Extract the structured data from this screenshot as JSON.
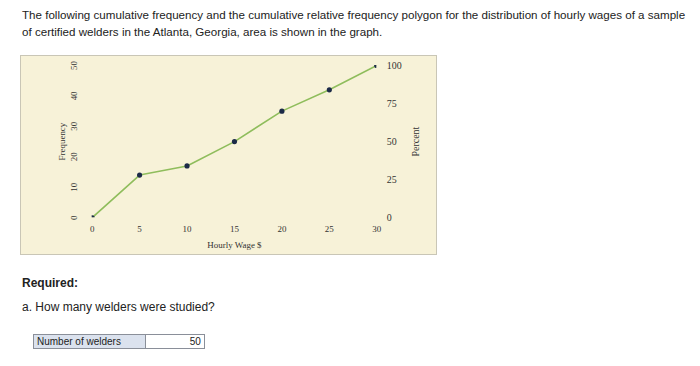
{
  "problem_text": "The following cumulative frequency and the cumulative relative frequency polygon for the distribution of hourly wages of a sample of certified welders in the Atlanta, Georgia, area is shown in the graph.",
  "chart_data": {
    "type": "line",
    "x_label": "Hourly Wage $",
    "y_label": "Frequency",
    "y2_label": "Percent",
    "x": [
      0,
      5,
      10,
      15,
      20,
      25,
      30
    ],
    "values": [
      0,
      14,
      17,
      25,
      35,
      42,
      50
    ],
    "color": "#8fbd5c",
    "marker": "circle",
    "xlim": [
      0,
      30
    ],
    "xticks": [
      0,
      5,
      10,
      15,
      20,
      25,
      30
    ],
    "ylim": [
      0,
      50
    ],
    "yticks": [
      0,
      10,
      20,
      30,
      40,
      50
    ],
    "y2lim": [
      0,
      100
    ],
    "y2ticks": [
      0,
      25,
      50,
      75,
      100
    ]
  },
  "required": "Required:",
  "question": "a. How many welders were studied?",
  "answer": {
    "label": "Number of welders",
    "value": 50
  }
}
